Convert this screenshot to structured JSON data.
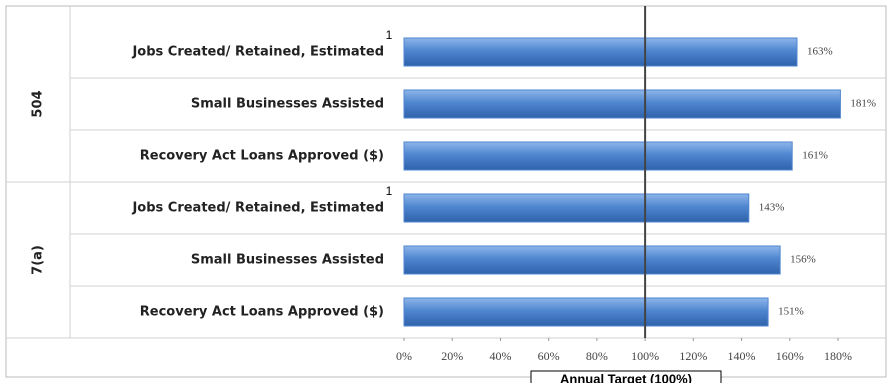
{
  "chart_data": {
    "type": "barh",
    "group_labels": [
      "504",
      "7(a)"
    ],
    "categories": [
      "Jobs Created/ Retained, Estimated",
      "Small Businesses Assisted",
      "Recovery Act Loans Approved ($)",
      "Jobs Created/ Retained, Estimated",
      "Small Businesses Assisted",
      "Recovery Act Loans Approved ($)"
    ],
    "category_notes": [
      "1",
      null,
      null,
      "1",
      null,
      null
    ],
    "values": [
      163,
      181,
      161,
      143,
      156,
      151
    ],
    "value_labels": [
      "163%",
      "181%",
      "161%",
      "143%",
      "156%",
      "151%"
    ],
    "color": "#4f86d0",
    "xlim": [
      0,
      180
    ],
    "xticks": [
      {
        "value": 0,
        "label": "0%"
      },
      {
        "value": 20,
        "label": "20%"
      },
      {
        "value": 40,
        "label": "40%"
      },
      {
        "value": 60,
        "label": "60%"
      },
      {
        "value": 80,
        "label": "80%"
      },
      {
        "value": 100,
        "label": "100%"
      },
      {
        "value": 120,
        "label": "120%"
      },
      {
        "value": 140,
        "label": "140%"
      },
      {
        "value": 160,
        "label": "160%"
      },
      {
        "value": 180,
        "label": "180%"
      }
    ],
    "reference_line": {
      "value": 100,
      "label": "Annual Target (100%)"
    }
  }
}
